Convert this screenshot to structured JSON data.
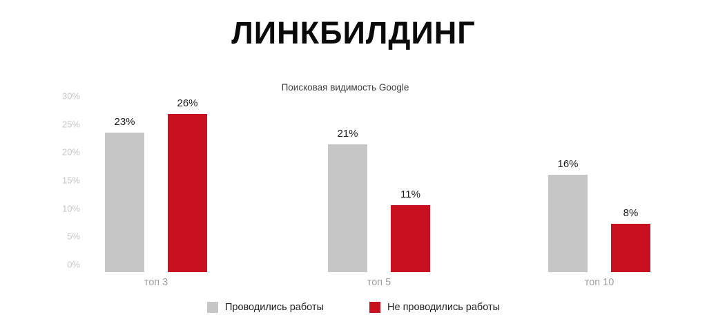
{
  "title": "ЛИНКБИЛДИНГ",
  "chart_data": {
    "type": "bar",
    "title": "Поисковая видимость Google",
    "xlabel": "",
    "ylabel": "",
    "categories": [
      "топ 3",
      "топ 5",
      "топ 10"
    ],
    "series": [
      {
        "name": "Проводились работы",
        "color": "#c6c6c6",
        "values": [
          23,
          21,
          16
        ]
      },
      {
        "name": "Не проводились работы",
        "color": "#c8101e",
        "values": [
          26,
          11,
          8
        ]
      }
    ],
    "ylim": [
      0,
      30
    ],
    "yticks": [
      0,
      5,
      10,
      15,
      20,
      25,
      30
    ],
    "tick_suffix": "%",
    "grid": false,
    "legend_position": "bottom",
    "colors": {
      "bar_gray": "#c6c6c6",
      "bar_red": "#c8101e",
      "axis_label": "#c6c6c6",
      "category_label": "#9e9e9e",
      "value_label": "#1a1a1a",
      "title": "#0a0a0a"
    }
  }
}
